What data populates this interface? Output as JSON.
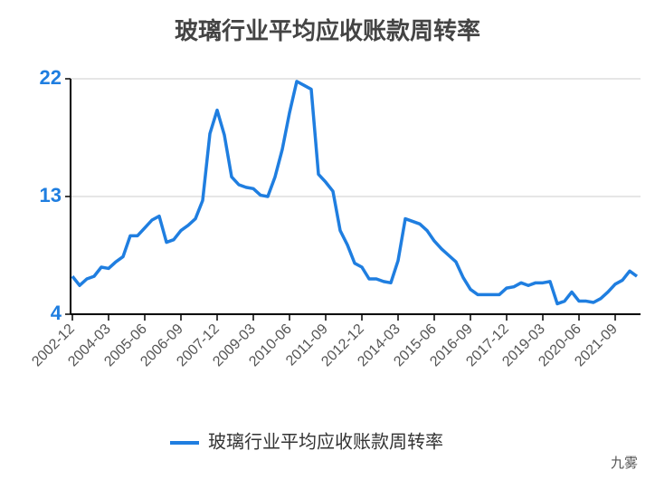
{
  "chart_data": {
    "type": "line",
    "title": "玻璃行业平均应收账款周转率",
    "categories": [
      "2002-12",
      null,
      null,
      null,
      null,
      "2004-03",
      null,
      null,
      null,
      null,
      "2005-06",
      null,
      null,
      null,
      null,
      "2006-09",
      null,
      null,
      null,
      null,
      "2007-12",
      null,
      null,
      null,
      null,
      "2009-03",
      null,
      null,
      null,
      null,
      "2010-06",
      null,
      null,
      null,
      null,
      "2011-09",
      null,
      null,
      null,
      null,
      "2012-12",
      null,
      null,
      null,
      null,
      "2014-03",
      null,
      null,
      null,
      null,
      "2015-06",
      null,
      null,
      null,
      null,
      "2016-09",
      null,
      null,
      null,
      null,
      "2017-12",
      null,
      null,
      null,
      null,
      "2019-03",
      null,
      null,
      null,
      null,
      "2020-06",
      null,
      null,
      null,
      null,
      "2021-09",
      null,
      null,
      null
    ],
    "series": [
      {
        "name": "玻璃行业平均应收账款周转率",
        "color": "#1f7ee0",
        "values": [
          6.9,
          6.2,
          6.7,
          6.9,
          7.6,
          7.5,
          8.0,
          8.4,
          10.0,
          10.0,
          10.6,
          11.2,
          11.5,
          9.5,
          9.7,
          10.4,
          10.8,
          11.3,
          12.7,
          17.8,
          19.6,
          17.7,
          14.5,
          13.9,
          13.7,
          13.6,
          13.1,
          13.0,
          14.5,
          16.6,
          19.4,
          21.8,
          21.5,
          21.2,
          14.7,
          14.1,
          13.4,
          10.4,
          9.3,
          7.9,
          7.6,
          6.7,
          6.7,
          6.5,
          6.4,
          8.1,
          11.3,
          11.1,
          10.9,
          10.4,
          9.6,
          9.0,
          8.5,
          8.0,
          6.8,
          5.9,
          5.5,
          5.5,
          5.5,
          5.5,
          6.0,
          6.1,
          6.4,
          6.2,
          6.4,
          6.4,
          6.5,
          4.8,
          5.0,
          5.7,
          5.0,
          5.0,
          4.9,
          5.2,
          5.7,
          6.3,
          6.6,
          7.3,
          6.9
        ]
      }
    ],
    "ylim": [
      4,
      22
    ],
    "yticks": [
      4,
      13,
      22
    ],
    "grid": true,
    "legend": "bottom",
    "watermark": "九雾"
  }
}
